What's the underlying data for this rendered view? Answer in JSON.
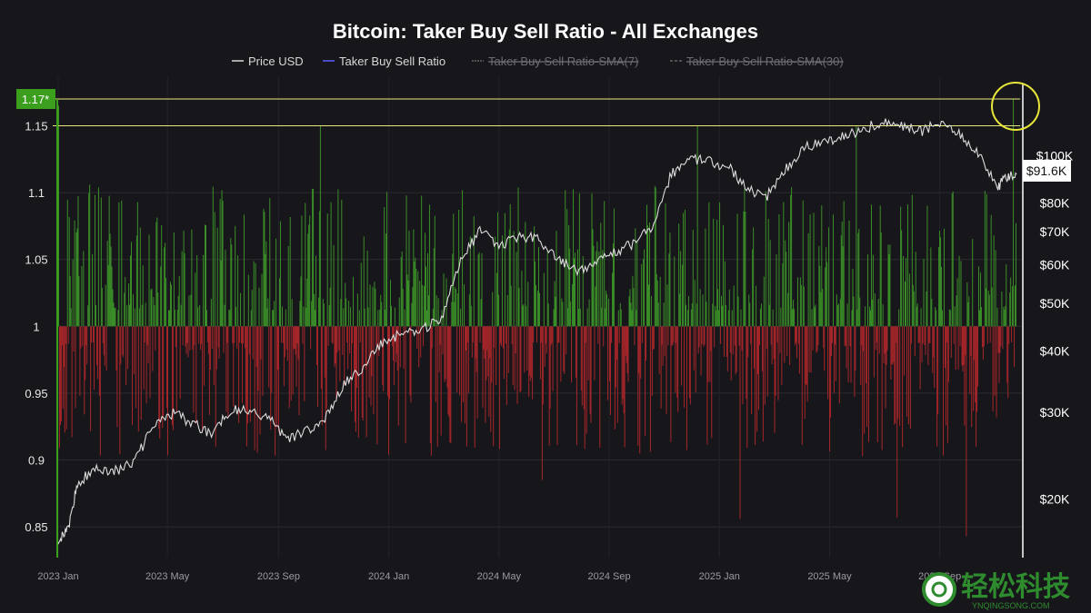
{
  "chart_data": {
    "type": "bar",
    "title": "Bitcoin: Taker Buy Sell Ratio - All Exchanges",
    "legend": [
      {
        "label": "Price USD",
        "color": "#d9d9d9",
        "active": true
      },
      {
        "label": "Taker Buy Sell Ratio",
        "color": "#5b5bff",
        "active": true
      },
      {
        "label": "Taker Buy Sell Ratio-SMA(7)",
        "color": "#8a8a8a",
        "active": false
      },
      {
        "label": "Taker Buy Sell Ratio-SMA(30)",
        "color": "#8a8a8a",
        "active": false
      }
    ],
    "x_ticks": [
      "2023 Jan",
      "2023 May",
      "2023 Sep",
      "2024 Jan",
      "2024 May",
      "2024 Sep",
      "2025 Jan",
      "2025 May",
      "2025 Sep"
    ],
    "x_range": [
      "2023-01-01",
      "2025-12-20"
    ],
    "left_axis": {
      "ticks": [
        "1.15",
        "1.1",
        "1.05",
        "1",
        "0.95",
        "0.9",
        "0.85"
      ],
      "tick_values": [
        1.15,
        1.1,
        1.05,
        1.0,
        0.95,
        0.9,
        0.85
      ],
      "ylim": [
        0.827,
        1.187
      ],
      "baseline": 1.0
    },
    "right_axis": {
      "ticks": [
        "$100K",
        "$80K",
        "$70K",
        "$60K",
        "$50K",
        "$40K",
        "$30K",
        "$20K"
      ],
      "tick_values": [
        100000,
        80000,
        70000,
        60000,
        50000,
        40000,
        30000,
        20000
      ],
      "scale": "log",
      "ylim": [
        15200,
        145000
      ]
    },
    "reference_lines": [
      {
        "value": 1.17,
        "label": "1.17*",
        "color": "#e8e87a"
      },
      {
        "value": 1.15,
        "label": "",
        "color": "#e8e87a"
      }
    ],
    "latest_price_label": "$91.6K",
    "latest_price_value": 91600,
    "highlight": "circle around the latest 1.17 bar",
    "price_series": {
      "name": "Price USD",
      "x": [
        0,
        0.01,
        0.02,
        0.04,
        0.06,
        0.08,
        0.1,
        0.12,
        0.14,
        0.16,
        0.18,
        0.2,
        0.22,
        0.24,
        0.26,
        0.28,
        0.3,
        0.32,
        0.34,
        0.36,
        0.38,
        0.4,
        0.42,
        0.44,
        0.46,
        0.48,
        0.5,
        0.52,
        0.54,
        0.56,
        0.58,
        0.6,
        0.62,
        0.64,
        0.66,
        0.68,
        0.7,
        0.72,
        0.74,
        0.76,
        0.78,
        0.8,
        0.82,
        0.84,
        0.86,
        0.88,
        0.9,
        0.92,
        0.94,
        0.96,
        0.98,
        0.99,
        1.0
      ],
      "values": [
        16600,
        17200,
        21500,
        23200,
        22800,
        24000,
        28200,
        30000,
        28500,
        27200,
        30500,
        30200,
        29200,
        26500,
        27500,
        29500,
        34500,
        37500,
        42000,
        43500,
        44000,
        47000,
        61000,
        70500,
        65500,
        68000,
        68500,
        61500,
        58500,
        60000,
        63500,
        66000,
        72000,
        92000,
        98000,
        97500,
        94500,
        85000,
        83000,
        94000,
        104000,
        107000,
        109000,
        113000,
        117500,
        115000,
        112000,
        117000,
        110500,
        101000,
        86000,
        90500,
        91600
      ]
    },
    "ratio_series": {
      "name": "Taker Buy Sell Ratio",
      "note": "daily ratio bars; green above 1, red below 1; approximate reconstruction",
      "count": 1080,
      "min": 0.843,
      "max": 1.17,
      "spikes": [
        {
          "x": 0.0,
          "value": 1.165
        },
        {
          "x": 0.273,
          "value": 1.15
        },
        {
          "x": 0.667,
          "value": 1.15
        },
        {
          "x": 0.833,
          "value": 1.15
        },
        {
          "x": 0.997,
          "value": 1.17
        },
        {
          "x": 0.712,
          "value": 0.856
        },
        {
          "x": 0.948,
          "value": 0.843
        },
        {
          "x": 0.876,
          "value": 0.857
        },
        {
          "x": 0.505,
          "value": 0.885
        }
      ]
    }
  },
  "watermark": {
    "brand": "轻松科技",
    "site": "YNQINGSONG.COM"
  }
}
